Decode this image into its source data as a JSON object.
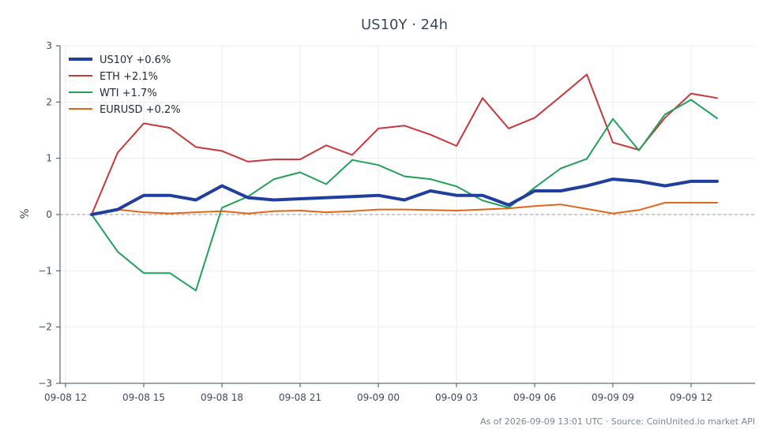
{
  "chart_data": {
    "type": "line",
    "title": "US10Y · 24h",
    "ylabel": "%",
    "xlabel": "",
    "ylim": [
      -3,
      3
    ],
    "yticks": [
      3,
      2,
      1,
      0,
      -1,
      -2,
      -3
    ],
    "ytick_labels": [
      "3",
      "2",
      "1",
      "0",
      "−1",
      "−2",
      "−3"
    ],
    "xticks": [
      "09-08 12",
      "09-08 15",
      "09-08 18",
      "09-08 21",
      "09-09 00",
      "09-09 03",
      "09-09 06",
      "09-09 09",
      "09-09 12"
    ],
    "x_start": "2026-09-08 12:00",
    "x_end": "2026-09-09 13:00",
    "grid": true,
    "zero_line": "dashed",
    "legend_position": "top-left",
    "x": [
      "2026-09-08 13:00",
      "2026-09-08 14:00",
      "2026-09-08 15:00",
      "2026-09-08 16:00",
      "2026-09-08 17:00",
      "2026-09-08 18:00",
      "2026-09-08 19:00",
      "2026-09-08 20:00",
      "2026-09-08 21:00",
      "2026-09-08 22:00",
      "2026-09-08 23:00",
      "2026-09-09 00:00",
      "2026-09-09 01:00",
      "2026-09-09 02:00",
      "2026-09-09 03:00",
      "2026-09-09 04:00",
      "2026-09-09 05:00",
      "2026-09-09 06:00",
      "2026-09-09 07:00",
      "2026-09-09 08:00",
      "2026-09-09 09:00",
      "2026-09-09 10:00",
      "2026-09-09 11:00",
      "2026-09-09 12:00",
      "2026-09-09 13:00"
    ],
    "series": [
      {
        "name": "ETH +2.1%",
        "color": "#c7383a",
        "width": 2,
        "values": [
          0.0,
          1.1,
          1.62,
          1.54,
          1.2,
          1.13,
          0.94,
          0.98,
          0.98,
          1.23,
          1.06,
          1.53,
          1.58,
          1.42,
          1.22,
          2.07,
          1.53,
          1.72,
          2.1,
          2.49,
          1.28,
          1.15,
          1.72,
          2.15,
          2.07
        ]
      },
      {
        "name": "WTI +1.7%",
        "color": "#23a057",
        "width": 2,
        "values": [
          0.0,
          -0.66,
          -1.04,
          -1.04,
          -1.35,
          0.12,
          0.32,
          0.63,
          0.75,
          0.54,
          0.97,
          0.88,
          0.68,
          0.63,
          0.5,
          0.25,
          0.12,
          0.48,
          0.82,
          0.99,
          1.7,
          1.14,
          1.78,
          2.04,
          1.71
        ]
      },
      {
        "name": "EURUSD +0.2%",
        "color": "#e0661a",
        "width": 2,
        "values": [
          0.0,
          0.09,
          0.04,
          0.02,
          0.04,
          0.06,
          0.02,
          0.06,
          0.07,
          0.04,
          0.06,
          0.09,
          0.09,
          0.08,
          0.07,
          0.09,
          0.11,
          0.15,
          0.18,
          0.1,
          0.02,
          0.08,
          0.21,
          0.21,
          0.21
        ]
      },
      {
        "name": "US10Y +0.6%",
        "color": "#1f3e9e",
        "width": 4,
        "values": [
          0.0,
          0.09,
          0.34,
          0.34,
          0.26,
          0.51,
          0.3,
          0.26,
          0.28,
          0.3,
          0.32,
          0.34,
          0.26,
          0.42,
          0.34,
          0.34,
          0.17,
          0.42,
          0.42,
          0.51,
          0.63,
          0.59,
          0.51,
          0.59,
          0.59
        ]
      }
    ],
    "legend_order": [
      "US10Y +0.6%",
      "ETH +2.1%",
      "WTI +1.7%",
      "EURUSD +0.2%"
    ],
    "footnote": "As of 2026-09-09 13:01 UTC · Source: CoinUnited.io market API"
  }
}
